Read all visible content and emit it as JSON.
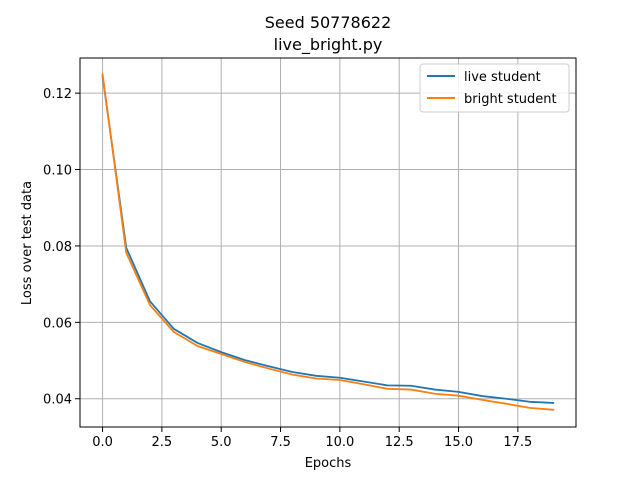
{
  "chart_data": {
    "type": "line",
    "title": "Seed 50778622",
    "subtitle": "live_bright.py",
    "xlabel": "Epochs",
    "ylabel": "Loss over test data",
    "xlim": [
      -0.95,
      19.95
    ],
    "ylim": [
      0.0326,
      0.1292
    ],
    "xticks": [
      0.0,
      2.5,
      5.0,
      7.5,
      10.0,
      12.5,
      15.0,
      17.5
    ],
    "xtick_labels": [
      "0.0",
      "2.5",
      "5.0",
      "7.5",
      "10.0",
      "12.5",
      "15.0",
      "17.5"
    ],
    "yticks": [
      0.04,
      0.06,
      0.08,
      0.1,
      0.12
    ],
    "ytick_labels": [
      "0.04",
      "0.06",
      "0.08",
      "0.10",
      "0.12"
    ],
    "grid": true,
    "legend_position": "top-right",
    "x": [
      0,
      1,
      2,
      3,
      4,
      5,
      6,
      7,
      8,
      9,
      10,
      11,
      12,
      13,
      14,
      15,
      16,
      17,
      18,
      19
    ],
    "series": [
      {
        "name": "live student",
        "color": "#1f77b4",
        "values": [
          0.1245,
          0.0795,
          0.0655,
          0.0583,
          0.0546,
          0.0522,
          0.0501,
          0.0485,
          0.047,
          0.046,
          0.0455,
          0.0445,
          0.0435,
          0.0434,
          0.0424,
          0.0418,
          0.0407,
          0.04,
          0.0392,
          0.0389
        ]
      },
      {
        "name": "bright student",
        "color": "#ff7f0e",
        "values": [
          0.125,
          0.0782,
          0.0645,
          0.0575,
          0.0538,
          0.0517,
          0.0496,
          0.0479,
          0.0463,
          0.0453,
          0.0449,
          0.0438,
          0.0426,
          0.0424,
          0.0413,
          0.0408,
          0.0397,
          0.0387,
          0.0376,
          0.0371
        ]
      }
    ]
  }
}
